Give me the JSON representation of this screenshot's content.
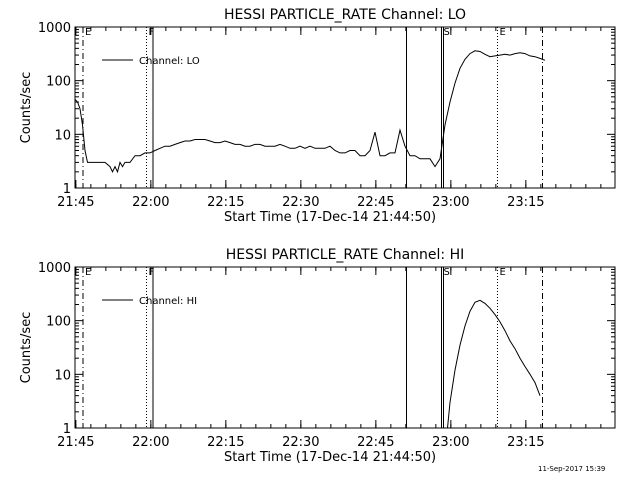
{
  "footer_timestamp": "11-Sep-2017 15:39",
  "chart_data": [
    {
      "type": "line",
      "title": "HESSI PARTICLE_RATE Channel: LO",
      "xlabel": "Start Time (17-Dec-14 21:44:50)",
      "ylabel": "Counts/sec",
      "x_unit": "minutes after 21:44:50",
      "xlim": [
        0,
        108
      ],
      "ylim": [
        1,
        1000
      ],
      "yscale": "log",
      "xticks": [
        {
          "v": 0.17,
          "label": "21:45"
        },
        {
          "v": 15.17,
          "label": "22:00"
        },
        {
          "v": 30.17,
          "label": "22:15"
        },
        {
          "v": 45.17,
          "label": "22:30"
        },
        {
          "v": 60.17,
          "label": "22:45"
        },
        {
          "v": 75.17,
          "label": "23:00"
        },
        {
          "v": 90.17,
          "label": "23:15"
        }
      ],
      "yticks": [
        {
          "v": 1,
          "label": "1"
        },
        {
          "v": 10,
          "label": "10"
        },
        {
          "v": 100,
          "label": "100"
        },
        {
          "v": 1000,
          "label": "1000"
        }
      ],
      "legend": {
        "position": "top-left",
        "entries": [
          "Channel: LO"
        ]
      },
      "markers": [
        {
          "label": "E",
          "x": 1.6,
          "style": "dashdot"
        },
        {
          "label": "F",
          "x": 14.3,
          "style": "dotted"
        },
        {
          "label": "",
          "x": 15.6,
          "style": "solid"
        },
        {
          "label": "",
          "x": 66.3,
          "style": "solid"
        },
        {
          "label": "S",
          "x": 73.3,
          "style": "solid"
        },
        {
          "label": "",
          "x": 73.7,
          "style": "solid"
        },
        {
          "label": "E",
          "x": 84.5,
          "style": "dotted"
        },
        {
          "label": "",
          "x": 93.5,
          "style": "dashdot"
        }
      ],
      "series": [
        {
          "name": "Channel: LO",
          "x": [
            0,
            0.5,
            1,
            1.5,
            2,
            2.5,
            3,
            4,
            5,
            6,
            7,
            7.5,
            8,
            8.5,
            9,
            9.5,
            10,
            11,
            12,
            13,
            14,
            15,
            16,
            17,
            18,
            19,
            20,
            21,
            22,
            23,
            24,
            25,
            26,
            27,
            28,
            29,
            30,
            31,
            32,
            33,
            34,
            35,
            36,
            37,
            38,
            39,
            40,
            41,
            42,
            43,
            44,
            45,
            46,
            47,
            48,
            49,
            50,
            51,
            52,
            53,
            54,
            55,
            56,
            57,
            58,
            59,
            60,
            61,
            62,
            63,
            64,
            65,
            66,
            67,
            68,
            69,
            70,
            71,
            72,
            73,
            74,
            75,
            76,
            77,
            78,
            79,
            80,
            81,
            82,
            83,
            84,
            85,
            86,
            87,
            88,
            89,
            90,
            91,
            92,
            93,
            94
          ],
          "y": [
            45,
            40,
            30,
            15,
            5,
            3,
            3,
            3,
            3,
            3,
            2.5,
            2,
            2.5,
            2,
            3,
            2.5,
            3,
            3,
            4,
            4,
            4.5,
            4.5,
            5,
            5.5,
            6,
            6,
            6.5,
            7,
            7.5,
            7.5,
            8,
            8,
            8,
            7.5,
            7,
            7,
            7.5,
            7,
            6.5,
            6.5,
            6,
            6,
            6.5,
            6.5,
            6,
            6,
            6,
            6.5,
            6,
            5.5,
            5.5,
            6,
            5.5,
            6,
            5.5,
            5.5,
            5.5,
            6,
            5,
            4.5,
            4.5,
            5,
            5,
            4,
            4,
            5,
            11,
            4,
            4,
            4.5,
            4.5,
            12,
            6,
            4,
            4,
            3.5,
            3.5,
            3.5,
            2.5,
            3.5,
            15,
            40,
            90,
            170,
            250,
            320,
            360,
            350,
            310,
            280,
            290,
            300,
            310,
            300,
            320,
            330,
            320,
            290,
            280,
            260,
            240
          ]
        }
      ]
    },
    {
      "type": "line",
      "title": "HESSI PARTICLE_RATE Channel: HI",
      "xlabel": "Start Time (17-Dec-14 21:44:50)",
      "ylabel": "Counts/sec",
      "x_unit": "minutes after 21:44:50",
      "xlim": [
        0,
        108
      ],
      "ylim": [
        1,
        1000
      ],
      "yscale": "log",
      "xticks": [
        {
          "v": 0.17,
          "label": "21:45"
        },
        {
          "v": 15.17,
          "label": "22:00"
        },
        {
          "v": 30.17,
          "label": "22:15"
        },
        {
          "v": 45.17,
          "label": "22:30"
        },
        {
          "v": 60.17,
          "label": "22:45"
        },
        {
          "v": 75.17,
          "label": "23:00"
        },
        {
          "v": 90.17,
          "label": "23:15"
        }
      ],
      "yticks": [
        {
          "v": 1,
          "label": "1"
        },
        {
          "v": 10,
          "label": "10"
        },
        {
          "v": 100,
          "label": "100"
        },
        {
          "v": 1000,
          "label": "1000"
        }
      ],
      "legend": {
        "position": "top-left",
        "entries": [
          "Channel: HI"
        ]
      },
      "markers": [
        {
          "label": "E",
          "x": 1.6,
          "style": "dashdot"
        },
        {
          "label": "F",
          "x": 14.3,
          "style": "dotted"
        },
        {
          "label": "",
          "x": 15.6,
          "style": "solid"
        },
        {
          "label": "",
          "x": 66.3,
          "style": "solid"
        },
        {
          "label": "S",
          "x": 73.3,
          "style": "solid"
        },
        {
          "label": "",
          "x": 73.7,
          "style": "solid"
        },
        {
          "label": "E",
          "x": 84.5,
          "style": "dotted"
        },
        {
          "label": "",
          "x": 93.5,
          "style": "dashdot"
        }
      ],
      "series": [
        {
          "name": "Channel: HI",
          "x": [
            74.5,
            75,
            76,
            77,
            78,
            79,
            80,
            81,
            82,
            83,
            84,
            85,
            86,
            87,
            88,
            89,
            90,
            91,
            92,
            93
          ],
          "y": [
            1,
            3,
            12,
            35,
            80,
            150,
            220,
            240,
            210,
            170,
            130,
            95,
            65,
            42,
            30,
            20,
            14,
            10,
            7,
            4
          ]
        }
      ]
    }
  ]
}
